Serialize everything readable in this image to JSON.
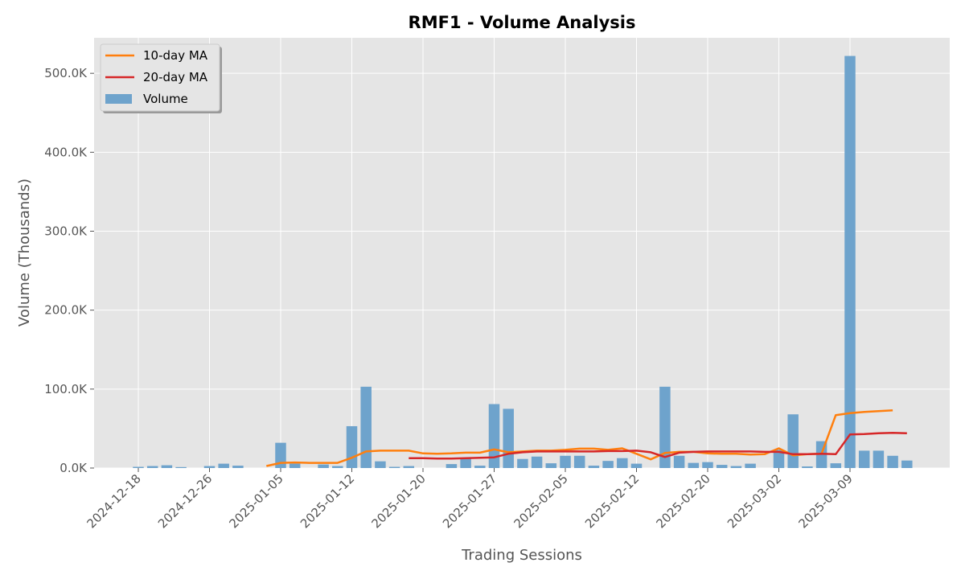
{
  "chart_data": {
    "type": "bar",
    "title": "RMF1 - Volume Analysis",
    "xlabel": "Trading Sessions",
    "ylabel": "Volume (Thousands)",
    "ylim": [
      0,
      545000
    ],
    "yticks": [
      0,
      100000,
      200000,
      300000,
      400000,
      500000
    ],
    "ytick_labels": [
      "0.0K",
      "100.0K",
      "200.0K",
      "300.0K",
      "400.0K",
      "500.0K"
    ],
    "xticks": [
      {
        "index": 0,
        "label": "2024-12-18"
      },
      {
        "index": 5,
        "label": "2024-12-26"
      },
      {
        "index": 10,
        "label": "2025-01-05"
      },
      {
        "index": 15,
        "label": "2025-01-12"
      },
      {
        "index": 20,
        "label": "2025-01-20"
      },
      {
        "index": 25,
        "label": "2025-01-27"
      },
      {
        "index": 30,
        "label": "2025-02-05"
      },
      {
        "index": 35,
        "label": "2025-02-12"
      },
      {
        "index": 40,
        "label": "2025-02-20"
      },
      {
        "index": 45,
        "label": "2025-03-02"
      },
      {
        "index": 50,
        "label": "2025-03-09"
      }
    ],
    "grid": true,
    "legend": "top-left",
    "series": [
      {
        "name": "Volume",
        "kind": "bar",
        "color": "#6ea3cc",
        "values": [
          1500,
          2500,
          3500,
          1200,
          0,
          2500,
          5500,
          3000,
          0,
          0,
          32000,
          5500,
          0,
          4500,
          2500,
          53000,
          103000,
          8500,
          1500,
          2500,
          0,
          0,
          5000,
          12000,
          3000,
          81000,
          75000,
          11500,
          14500,
          6000,
          15500,
          15500,
          3000,
          9000,
          12500,
          5500,
          0,
          103000,
          15500,
          6500,
          7500,
          4000,
          2500,
          5500,
          0,
          23000,
          68000,
          2000,
          34000,
          6000,
          522000,
          22000,
          22000,
          15500,
          9500
        ]
      },
      {
        "name": "10-day MA",
        "kind": "line",
        "color": "#ff7f0e",
        "start_index": 9,
        "values": [
          2500,
          6500,
          7000,
          6500,
          6500,
          6500,
          13000,
          21000,
          22000,
          22000,
          22000,
          18500,
          18000,
          18500,
          19500,
          19500,
          23500,
          20000,
          21000,
          22000,
          22000,
          23000,
          24500,
          24500,
          23000,
          25000,
          18000,
          11000,
          19000,
          20500,
          20500,
          18500,
          18000,
          18000,
          17000,
          17500,
          25000,
          16000,
          17500,
          18000,
          67000,
          69500,
          71000,
          72000,
          73000
        ]
      },
      {
        "name": "20-day MA",
        "kind": "line",
        "color": "#d62728",
        "start_index": 19,
        "values": [
          12500,
          12500,
          12000,
          12000,
          12500,
          13000,
          13500,
          18000,
          20000,
          21000,
          21000,
          21000,
          21000,
          21000,
          21500,
          21500,
          22000,
          20000,
          14000,
          19500,
          20500,
          21000,
          21000,
          21000,
          21000,
          20500,
          20500,
          17500,
          17500,
          18000,
          17500,
          42500,
          43000,
          44000,
          44500,
          44000
        ]
      }
    ]
  }
}
